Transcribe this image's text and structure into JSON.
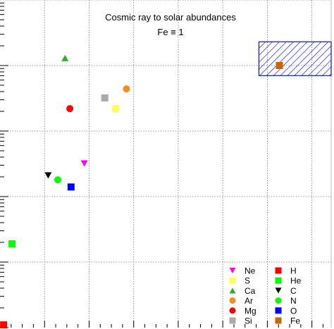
{
  "chart_data": {
    "type": "scatter",
    "title": "Cosmic ray to solar abundances",
    "subtitle": "Fe ≡ 1",
    "xlabel": "",
    "ylabel": "",
    "x_scale": "linear",
    "y_scale": "log",
    "xlim": [
      0,
      27.5
    ],
    "ylim": [
      0.0001,
      10
    ],
    "grid": true,
    "legend_position": "bottom-right",
    "highlight_region": {
      "x": [
        21.5,
        27.5
      ],
      "y": [
        0.7,
        2.3
      ],
      "color": "#1a1aff"
    },
    "series": [
      {
        "name": "H",
        "marker": "square",
        "color": "#ff0000",
        "points": [
          {
            "x": 0.3,
            "y": 0.00011
          }
        ]
      },
      {
        "name": "He",
        "marker": "square",
        "color": "#00ff00",
        "points": [
          {
            "x": 1.0,
            "y": 0.0019
          }
        ]
      },
      {
        "name": "C",
        "marker": "triangle-down",
        "color": "#000000",
        "points": [
          {
            "x": 4.0,
            "y": 0.021
          }
        ]
      },
      {
        "name": "N",
        "marker": "circle",
        "color": "#00ff00",
        "points": [
          {
            "x": 4.8,
            "y": 0.018
          }
        ]
      },
      {
        "name": "O",
        "marker": "square",
        "color": "#0000ff",
        "points": [
          {
            "x": 5.9,
            "y": 0.014
          }
        ]
      },
      {
        "name": "Ne",
        "marker": "triangle-down",
        "color": "#ff00ff",
        "points": [
          {
            "x": 7.0,
            "y": 0.032
          }
        ]
      },
      {
        "name": "Mg",
        "marker": "circle",
        "color": "#ff0000",
        "points": [
          {
            "x": 5.8,
            "y": 0.22
          }
        ]
      },
      {
        "name": "Si",
        "marker": "square",
        "color": "#aaaaaa",
        "points": [
          {
            "x": 8.7,
            "y": 0.32
          }
        ]
      },
      {
        "name": "S",
        "marker": "square",
        "color": "#ffff55",
        "points": [
          {
            "x": 9.6,
            "y": 0.22
          }
        ]
      },
      {
        "name": "Ar",
        "marker": "circle",
        "color": "#ff8c1a",
        "points": [
          {
            "x": 10.5,
            "y": 0.44
          }
        ]
      },
      {
        "name": "Ca",
        "marker": "triangle-up",
        "color": "#33aa33",
        "points": [
          {
            "x": 5.4,
            "y": 1.3
          }
        ]
      },
      {
        "name": "Fe",
        "marker": "square",
        "color": "#cc6600",
        "points": [
          {
            "x": 23.2,
            "y": 1.0
          }
        ]
      }
    ],
    "legend": [
      {
        "name": "Ne",
        "marker": "triangle-down",
        "color": "#ff00ff"
      },
      {
        "name": "S",
        "marker": "square",
        "color": "#ffff55"
      },
      {
        "name": "Ca",
        "marker": "triangle-up",
        "color": "#33aa33"
      },
      {
        "name": "Ar",
        "marker": "circle",
        "color": "#ff8c1a"
      },
      {
        "name": "Mg",
        "marker": "circle",
        "color": "#ff0000"
      },
      {
        "name": "Si",
        "marker": "square",
        "color": "#aaaaaa"
      },
      {
        "name": "H",
        "marker": "square",
        "color": "#ff0000"
      },
      {
        "name": "He",
        "marker": "square",
        "color": "#00ff00"
      },
      {
        "name": "C",
        "marker": "triangle-down",
        "color": "#000000"
      },
      {
        "name": "N",
        "marker": "circle",
        "color": "#00ff00"
      },
      {
        "name": "O",
        "marker": "square",
        "color": "#0000ff"
      },
      {
        "name": "Fe",
        "marker": "square",
        "color": "#cc6600"
      }
    ]
  }
}
